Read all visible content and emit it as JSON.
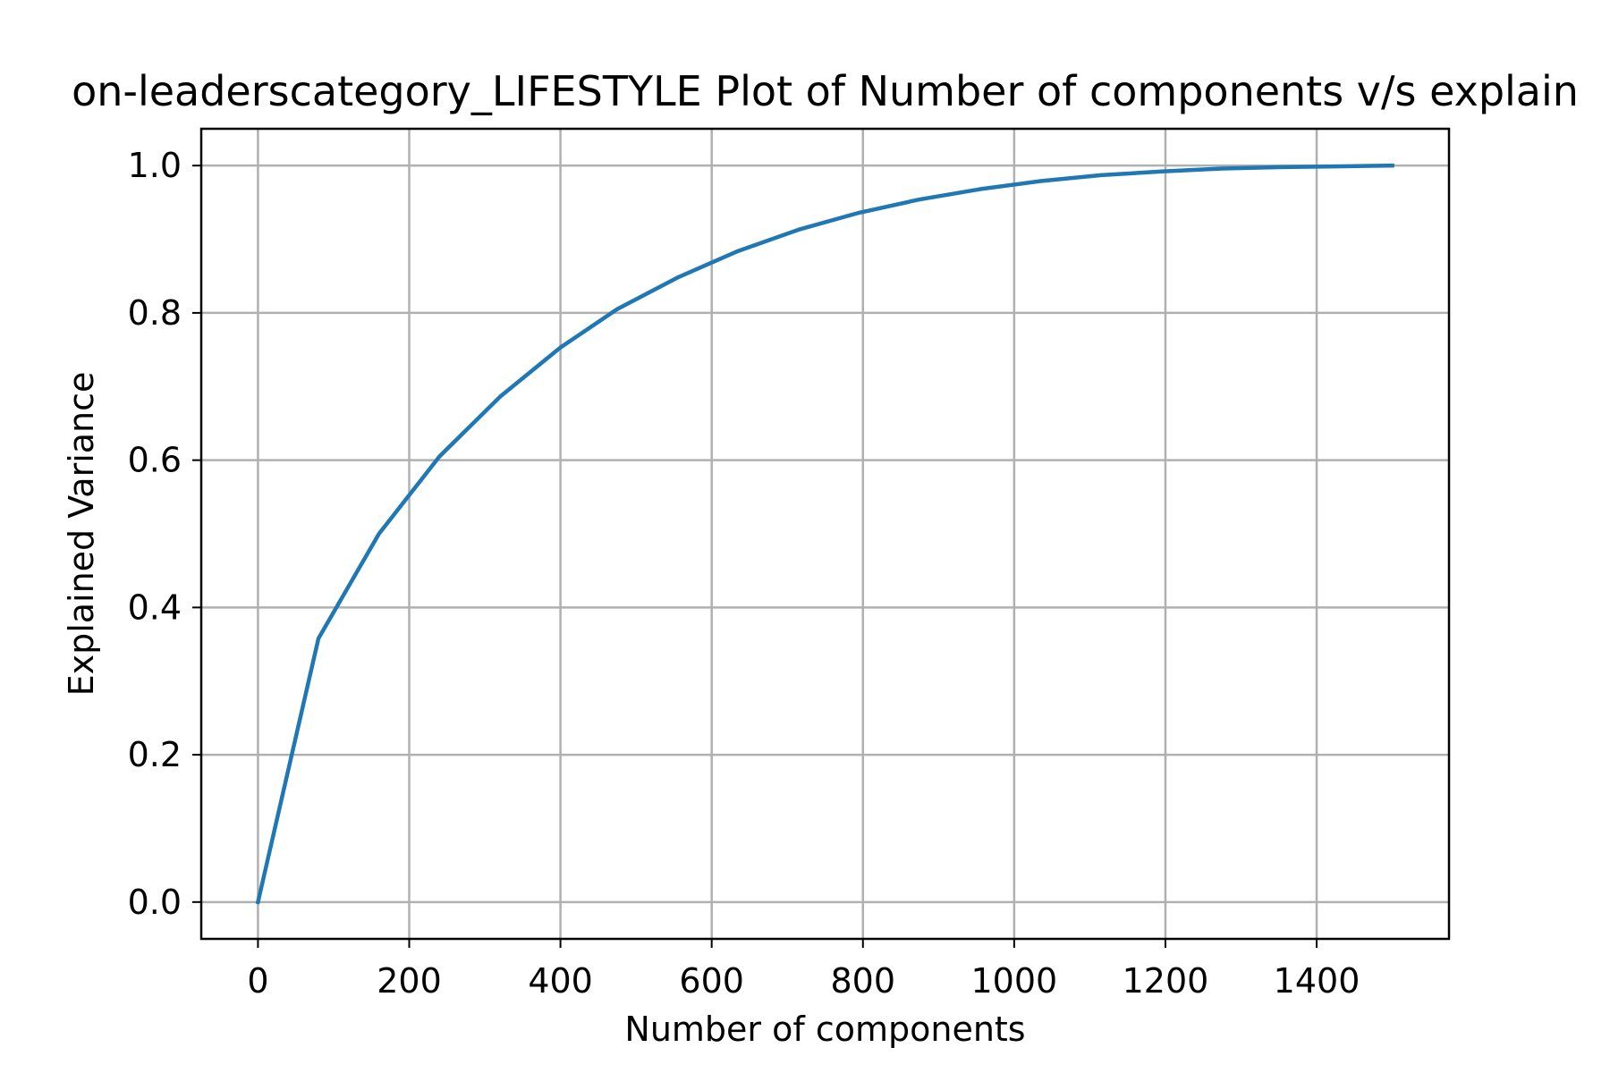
{
  "chart_data": {
    "type": "line",
    "title": "on-leaderscategory_LIFESTYLE Plot of Number of components v/s explain",
    "xlabel": "Number of components",
    "ylabel": "Explained Variance",
    "xlim": [
      -75,
      1575
    ],
    "ylim": [
      -0.05,
      1.05
    ],
    "grid": true,
    "xticks": [
      0,
      200,
      400,
      600,
      800,
      1000,
      1200,
      1400
    ],
    "xtick_labels": [
      "0",
      "200",
      "400",
      "600",
      "800",
      "1000",
      "1200",
      "1400"
    ],
    "yticks": [
      0.0,
      0.2,
      0.4,
      0.6,
      0.8,
      1.0
    ],
    "ytick_labels": [
      "0.0",
      "0.2",
      "0.4",
      "0.6",
      "0.8",
      "1.0"
    ],
    "series": [
      {
        "color": "#1f77b4",
        "x": [
          0,
          80,
          160,
          240,
          320,
          400,
          475,
          555,
          635,
          715,
          795,
          875,
          955,
          1035,
          1115,
          1195,
          1275,
          1355,
          1435,
          1500
        ],
        "y": [
          0.0,
          0.358,
          0.5,
          0.605,
          0.686,
          0.753,
          0.805,
          0.848,
          0.884,
          0.913,
          0.936,
          0.954,
          0.968,
          0.979,
          0.987,
          0.992,
          0.996,
          0.998,
          0.999,
          1.0
        ]
      }
    ]
  }
}
